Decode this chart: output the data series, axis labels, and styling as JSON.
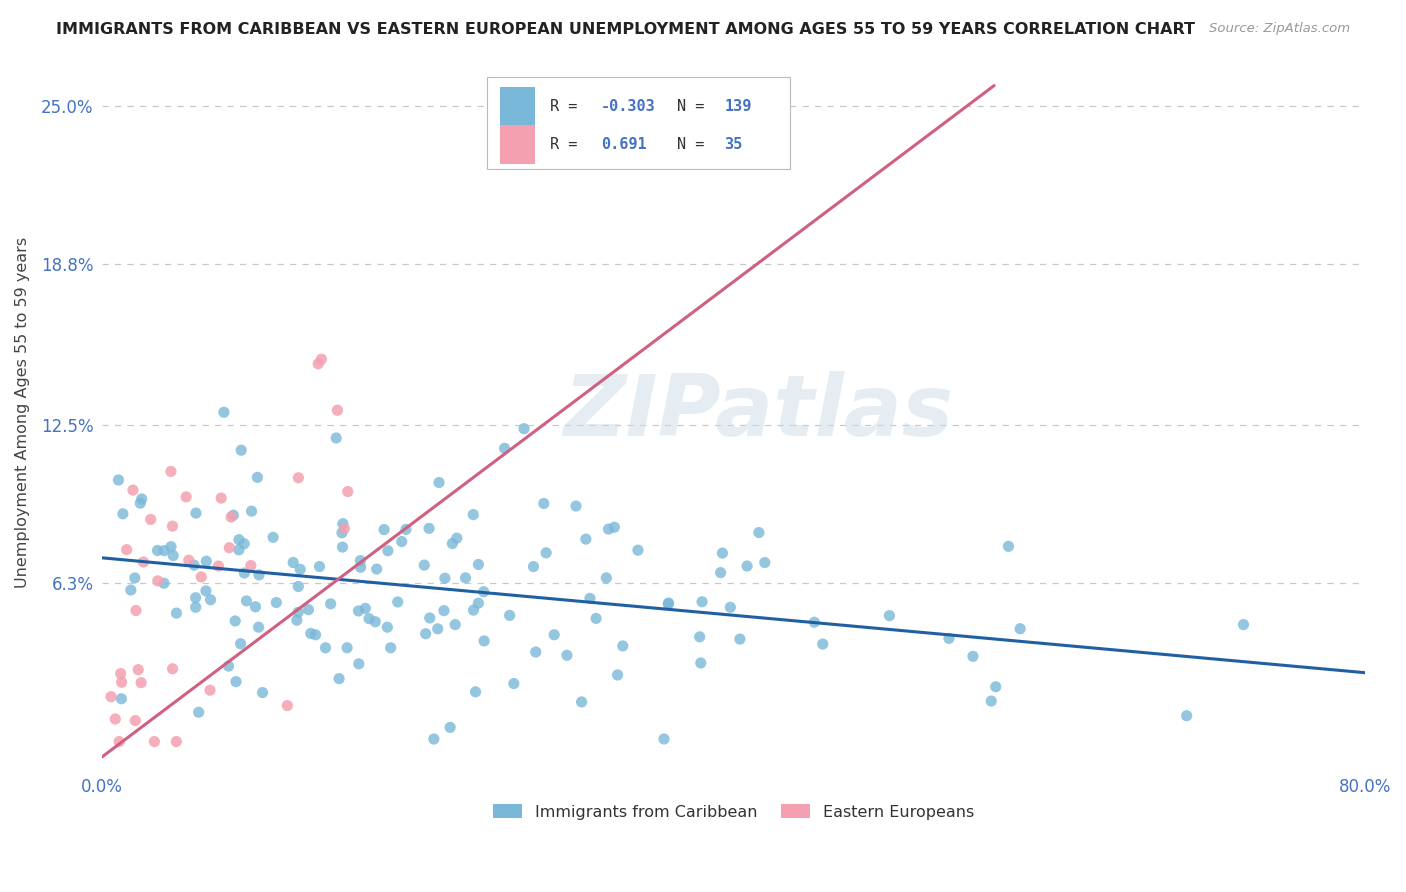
{
  "title": "IMMIGRANTS FROM CARIBBEAN VS EASTERN EUROPEAN UNEMPLOYMENT AMONG AGES 55 TO 59 YEARS CORRELATION CHART",
  "source": "Source: ZipAtlas.com",
  "ylabel": "Unemployment Among Ages 55 to 59 years",
  "xlim": [
    0.0,
    0.8
  ],
  "ylim": [
    -0.01,
    0.27
  ],
  "yticks": [
    0.0,
    0.063,
    0.125,
    0.188,
    0.25
  ],
  "ytick_labels": [
    "",
    "6.3%",
    "12.5%",
    "18.8%",
    "25.0%"
  ],
  "xticks": [
    0.0,
    0.1,
    0.2,
    0.3,
    0.4,
    0.5,
    0.6,
    0.7,
    0.8
  ],
  "xtick_labels": [
    "0.0%",
    "",
    "",
    "",
    "",
    "",
    "",
    "",
    "80.0%"
  ],
  "caribbean_R": -0.303,
  "caribbean_N": 139,
  "eastern_R": 0.691,
  "eastern_N": 35,
  "caribbean_color": "#7ab8d9",
  "eastern_color": "#f4a0b0",
  "caribbean_line_color": "#2060a0",
  "eastern_line_color": "#d06080",
  "watermark": "ZIPatlas",
  "background_color": "#ffffff",
  "grid_color": "#c8c8c8",
  "title_color": "#222222",
  "axis_label_color": "#444444",
  "tick_color": "#4472c4",
  "legend_R_color": "#4472c4",
  "legend_N_color": "#4472c4",
  "caribbean_line_start_x": 0.0,
  "caribbean_line_end_x": 0.8,
  "caribbean_line_start_y": 0.073,
  "caribbean_line_end_y": 0.028,
  "eastern_line_start_x": 0.0,
  "eastern_line_end_x": 0.565,
  "eastern_line_start_y": -0.005,
  "eastern_line_end_y": 0.258
}
